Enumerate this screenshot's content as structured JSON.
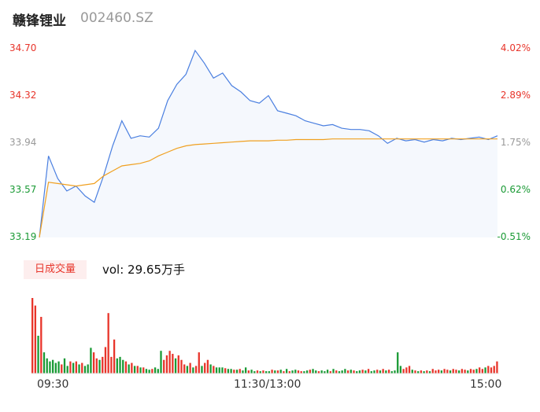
{
  "header": {
    "name": "赣锋锂业",
    "code": "002460.SZ"
  },
  "y_left_labels": [
    "34.70",
    "34.32",
    "33.94",
    "33.57",
    "33.19"
  ],
  "y_right_labels": [
    "4.02%",
    "2.89%",
    "1.75%",
    "0.62%",
    "-0.51%"
  ],
  "volume": {
    "tag": "日成交量",
    "text": "vol: 29.65万手"
  },
  "time_labels": [
    "09:30",
    "11:30/13:00",
    "15:00"
  ],
  "colors": {
    "up": "#e8352b",
    "down": "#1a9a35",
    "price_line": "#4a7fe0",
    "avg_line": "#f0a020",
    "neutral": "#999999"
  },
  "chart_data": {
    "type": "line",
    "title": "",
    "xlabel": "",
    "ylabel": "",
    "ylim": [
      33.19,
      34.7
    ],
    "x_ticks": [
      "09:30",
      "11:30/13:00",
      "15:00"
    ],
    "series": [
      {
        "values": [
          33.19,
          33.84,
          33.66,
          33.56,
          33.6,
          33.52,
          33.47,
          33.68,
          33.92,
          34.12,
          33.98,
          34.0,
          33.99,
          34.06,
          34.28,
          34.41,
          34.49,
          34.68,
          34.58,
          34.46,
          34.5,
          34.4,
          34.35,
          34.28,
          34.26,
          34.32,
          34.2,
          34.18,
          34.16,
          34.12,
          34.1,
          34.08,
          34.09,
          34.06,
          34.05,
          34.05,
          34.04,
          34.0,
          33.94,
          33.98,
          33.96,
          33.97,
          33.95,
          33.97,
          33.96,
          33.98,
          33.97,
          33.98,
          33.99,
          33.97,
          34.0
        ]
      },
      {
        "values": [
          33.19,
          33.63,
          33.62,
          33.61,
          33.6,
          33.61,
          33.62,
          33.68,
          33.72,
          33.76,
          33.77,
          33.78,
          33.8,
          33.84,
          33.87,
          33.9,
          33.92,
          33.93,
          33.935,
          33.94,
          33.945,
          33.95,
          33.955,
          33.96,
          33.96,
          33.96,
          33.965,
          33.965,
          33.97,
          33.97,
          33.97,
          33.97,
          33.975,
          33.975,
          33.975,
          33.975,
          33.975,
          33.975,
          33.975,
          33.975,
          33.975,
          33.975,
          33.975,
          33.975,
          33.975,
          33.975,
          33.975,
          33.975,
          33.975,
          33.975,
          33.975
        ]
      }
    ],
    "volume_max": 100,
    "volume": [
      [
        100,
        "up"
      ],
      [
        90,
        "up"
      ],
      [
        50,
        "down"
      ],
      [
        75,
        "up"
      ],
      [
        28,
        "down"
      ],
      [
        20,
        "down"
      ],
      [
        16,
        "down"
      ],
      [
        18,
        "down"
      ],
      [
        14,
        "down"
      ],
      [
        16,
        "down"
      ],
      [
        12,
        "up"
      ],
      [
        20,
        "down"
      ],
      [
        10,
        "down"
      ],
      [
        16,
        "up"
      ],
      [
        14,
        "down"
      ],
      [
        16,
        "up"
      ],
      [
        12,
        "down"
      ],
      [
        14,
        "up"
      ],
      [
        10,
        "down"
      ],
      [
        12,
        "down"
      ],
      [
        34,
        "down"
      ],
      [
        28,
        "up"
      ],
      [
        20,
        "up"
      ],
      [
        18,
        "down"
      ],
      [
        22,
        "up"
      ],
      [
        35,
        "up"
      ],
      [
        80,
        "up"
      ],
      [
        22,
        "up"
      ],
      [
        45,
        "up"
      ],
      [
        20,
        "down"
      ],
      [
        22,
        "down"
      ],
      [
        18,
        "down"
      ],
      [
        16,
        "up"
      ],
      [
        12,
        "down"
      ],
      [
        14,
        "up"
      ],
      [
        10,
        "down"
      ],
      [
        10,
        "up"
      ],
      [
        8,
        "down"
      ],
      [
        8,
        "up"
      ],
      [
        6,
        "down"
      ],
      [
        5,
        "down"
      ],
      [
        6,
        "up"
      ],
      [
        8,
        "down"
      ],
      [
        6,
        "down"
      ],
      [
        30,
        "down"
      ],
      [
        18,
        "up"
      ],
      [
        24,
        "up"
      ],
      [
        30,
        "up"
      ],
      [
        26,
        "up"
      ],
      [
        20,
        "down"
      ],
      [
        24,
        "up"
      ],
      [
        18,
        "up"
      ],
      [
        12,
        "up"
      ],
      [
        10,
        "down"
      ],
      [
        14,
        "up"
      ],
      [
        8,
        "down"
      ],
      [
        10,
        "up"
      ],
      [
        28,
        "up"
      ],
      [
        10,
        "down"
      ],
      [
        14,
        "up"
      ],
      [
        18,
        "up"
      ],
      [
        12,
        "down"
      ],
      [
        10,
        "up"
      ],
      [
        8,
        "down"
      ],
      [
        8,
        "down"
      ],
      [
        8,
        "down"
      ],
      [
        7,
        "up"
      ],
      [
        6,
        "down"
      ],
      [
        6,
        "down"
      ],
      [
        5,
        "up"
      ],
      [
        5,
        "down"
      ],
      [
        6,
        "up"
      ],
      [
        4,
        "down"
      ],
      [
        8,
        "down"
      ],
      [
        4,
        "up"
      ],
      [
        5,
        "down"
      ],
      [
        3,
        "down"
      ],
      [
        4,
        "up"
      ],
      [
        3,
        "down"
      ],
      [
        4,
        "up"
      ],
      [
        3,
        "down"
      ],
      [
        3,
        "down"
      ],
      [
        5,
        "up"
      ],
      [
        4,
        "down"
      ],
      [
        4,
        "up"
      ],
      [
        5,
        "down"
      ],
      [
        3,
        "up"
      ],
      [
        6,
        "down"
      ],
      [
        3,
        "up"
      ],
      [
        4,
        "down"
      ],
      [
        5,
        "down"
      ],
      [
        4,
        "up"
      ],
      [
        3,
        "up"
      ],
      [
        3,
        "down"
      ],
      [
        4,
        "down"
      ],
      [
        5,
        "up"
      ],
      [
        6,
        "down"
      ],
      [
        4,
        "down"
      ],
      [
        3,
        "up"
      ],
      [
        4,
        "down"
      ],
      [
        3,
        "down"
      ],
      [
        5,
        "down"
      ],
      [
        3,
        "up"
      ],
      [
        6,
        "down"
      ],
      [
        4,
        "up"
      ],
      [
        3,
        "down"
      ],
      [
        4,
        "down"
      ],
      [
        6,
        "down"
      ],
      [
        4,
        "up"
      ],
      [
        5,
        "down"
      ],
      [
        4,
        "up"
      ],
      [
        3,
        "down"
      ],
      [
        4,
        "down"
      ],
      [
        5,
        "up"
      ],
      [
        4,
        "down"
      ],
      [
        6,
        "up"
      ],
      [
        3,
        "down"
      ],
      [
        4,
        "down"
      ],
      [
        5,
        "up"
      ],
      [
        4,
        "down"
      ],
      [
        6,
        "up"
      ],
      [
        4,
        "down"
      ],
      [
        5,
        "up"
      ],
      [
        3,
        "down"
      ],
      [
        4,
        "down"
      ],
      [
        28,
        "down"
      ],
      [
        10,
        "down"
      ],
      [
        6,
        "up"
      ],
      [
        8,
        "up"
      ],
      [
        10,
        "up"
      ],
      [
        5,
        "down"
      ],
      [
        4,
        "up"
      ],
      [
        3,
        "down"
      ],
      [
        4,
        "up"
      ],
      [
        3,
        "down"
      ],
      [
        4,
        "up"
      ],
      [
        3,
        "down"
      ],
      [
        6,
        "up"
      ],
      [
        4,
        "up"
      ],
      [
        5,
        "up"
      ],
      [
        4,
        "down"
      ],
      [
        6,
        "up"
      ],
      [
        5,
        "up"
      ],
      [
        4,
        "down"
      ],
      [
        6,
        "up"
      ],
      [
        5,
        "up"
      ],
      [
        4,
        "down"
      ],
      [
        6,
        "up"
      ],
      [
        5,
        "up"
      ],
      [
        4,
        "down"
      ],
      [
        6,
        "up"
      ],
      [
        5,
        "up"
      ],
      [
        6,
        "down"
      ],
      [
        8,
        "up"
      ],
      [
        6,
        "up"
      ],
      [
        8,
        "down"
      ],
      [
        10,
        "up"
      ],
      [
        8,
        "up"
      ],
      [
        10,
        "up"
      ],
      [
        16,
        "up"
      ]
    ]
  }
}
